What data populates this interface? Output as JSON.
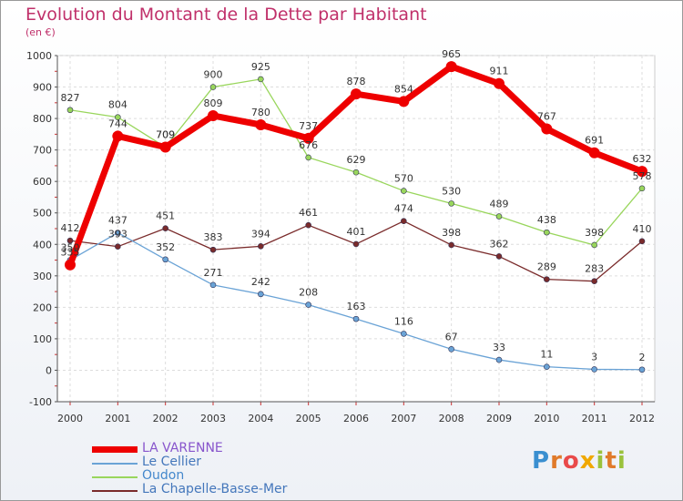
{
  "title": "Evolution du Montant de la Dette par Habitant",
  "subtitle": "(en €)",
  "logo": "Proxiti",
  "chart_data": {
    "type": "line",
    "x": [
      "2000",
      "2001",
      "2002",
      "2003",
      "2004",
      "2005",
      "2006",
      "2007",
      "2008",
      "2009",
      "2010",
      "2011",
      "2012"
    ],
    "ylim": [
      -100,
      1000
    ],
    "yticks": [
      "-100",
      "0",
      "100",
      "200",
      "300",
      "400",
      "500",
      "600",
      "700",
      "800",
      "900",
      "1000"
    ],
    "grid": true,
    "legend_position": "bottom-left",
    "series": [
      {
        "name": "LA VARENNE",
        "color": "#ee0000",
        "values": [
          335,
          744,
          709,
          809,
          780,
          737,
          878,
          854,
          965,
          911,
          767,
          691,
          632
        ]
      },
      {
        "name": "Le Cellier",
        "color": "#6aa3d6",
        "values": [
          350,
          437,
          352,
          271,
          242,
          208,
          163,
          116,
          67,
          33,
          11,
          3,
          2
        ]
      },
      {
        "name": "Oudon",
        "color": "#99d65c",
        "values": [
          827,
          804,
          709,
          900,
          925,
          676,
          629,
          570,
          530,
          489,
          438,
          398,
          578
        ]
      },
      {
        "name": "La Chapelle-Basse-Mer",
        "color": "#7a2b2b",
        "values": [
          412,
          393,
          451,
          383,
          394,
          461,
          401,
          474,
          398,
          362,
          289,
          283,
          410
        ]
      }
    ]
  }
}
